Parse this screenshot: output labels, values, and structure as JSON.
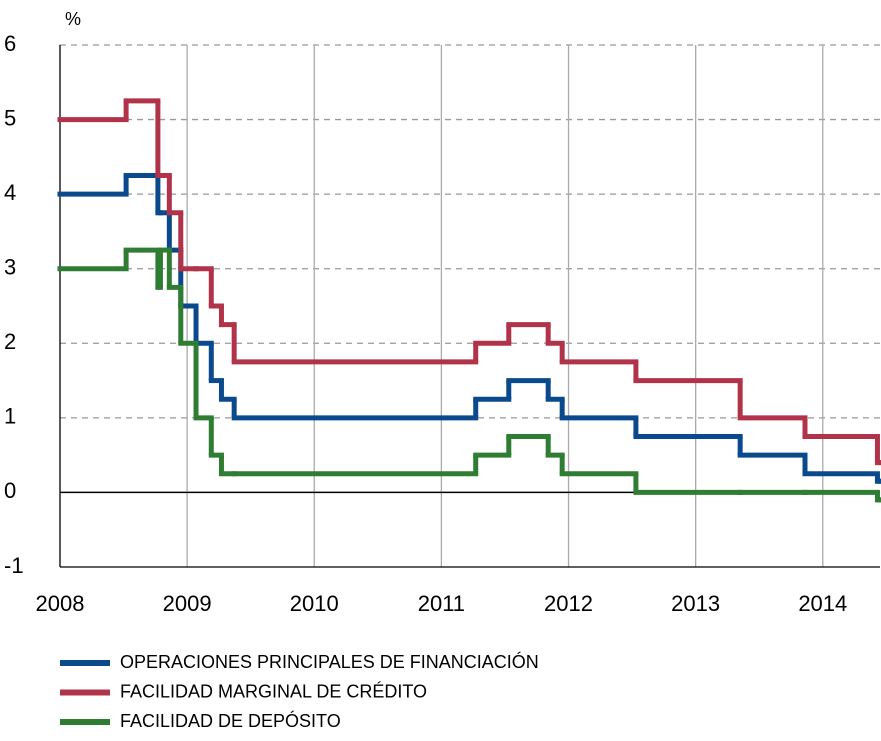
{
  "chart_data": {
    "type": "step",
    "y_label": "%",
    "x": [
      2008.0,
      2008.52,
      2008.77,
      2008.79,
      2008.86,
      2008.95,
      2009.07,
      2009.19,
      2009.27,
      2009.37,
      2011.27,
      2011.53,
      2011.84,
      2011.95,
      2012.53,
      2013.35,
      2013.86,
      2014.43,
      2014.45
    ],
    "series": [
      {
        "name": "OPERACIONES PRINCIPALES DE FINANCIACIÓN",
        "color": "#0a4a8c",
        "values": [
          4,
          4.25,
          3.75,
          3.75,
          3.25,
          2.5,
          2,
          1.5,
          1.25,
          1,
          1.25,
          1.5,
          1.25,
          1,
          0.75,
          0.5,
          0.25,
          0.15,
          0.15
        ]
      },
      {
        "name": "FACILIDAD MARGINAL DE CRÉDITO",
        "color": "#b0334a",
        "values": [
          5,
          5.25,
          4.25,
          4.25,
          3.75,
          3,
          3,
          2.5,
          2.25,
          1.75,
          2,
          2.25,
          2,
          1.75,
          1.5,
          1,
          0.75,
          0.4,
          0.4
        ]
      },
      {
        "name": "FACILIDAD DE DEPÓSITO",
        "color": "#2e7d32",
        "values": [
          3,
          3.25,
          2.75,
          3.25,
          2.75,
          2,
          1,
          0.5,
          0.25,
          0.25,
          0.5,
          0.75,
          0.5,
          0.25,
          0,
          0,
          0,
          -0.1,
          -0.1
        ]
      }
    ],
    "xlim": [
      2008,
      2014.45
    ],
    "xticks": [
      2008,
      2009,
      2010,
      2011,
      2012,
      2013,
      2014
    ],
    "ylim": [
      -1,
      6
    ],
    "yticks": [
      -1,
      0,
      1,
      2,
      3,
      4,
      5,
      6
    ],
    "grid": true
  }
}
